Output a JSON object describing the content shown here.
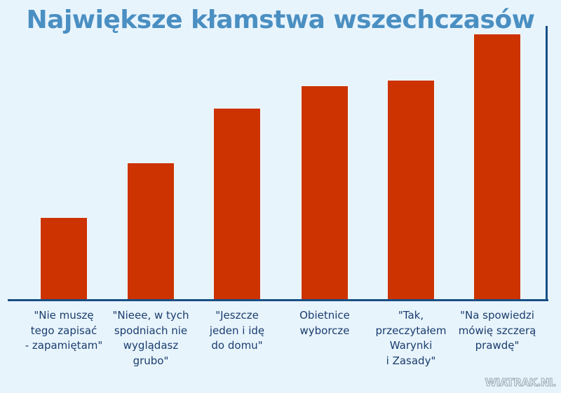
{
  "chart_data": {
    "type": "bar",
    "title": "Największe kłamstwa wszechczasów",
    "xlabel": "",
    "ylabel": "",
    "categories": [
      "\"Nie muszę tego zapisać - zapamiętam\"",
      "\"Nieee, w tych spodniach nie wyglądasz grubo\"",
      "\"Jeszcze jeden i idę do domu\"",
      "Obietnice wyborcze",
      "\"Tak, przeczytałem Warynki i Zasady\"",
      "\"Na spowiedzi mówię szczerą prawdę\""
    ],
    "values": [
      30,
      50,
      70,
      78,
      80,
      97
    ],
    "ylim": [
      0,
      100
    ],
    "grid": false,
    "legend": "none",
    "bar_color": "#cc3300",
    "axis_color": "#174f86"
  },
  "title": "Największe kłamstwa wszechczasów",
  "labels": [
    "\"Nie muszę\ntego zapisać\n- zapamiętam\"",
    "\"Nieee, w tych\nspodniach nie\nwyglądasz\ngrubo\"",
    "\"Jeszcze\njeden i idę\ndo domu\"",
    "Obietnice\nwyborcze",
    "\"Tak,\nprzeczytałem\nWarynki\ni Zasady\"",
    "\"Na spowiedzi\nmówię szczerą\nprawdę\""
  ],
  "watermark": "WIATRAK.NL",
  "colors": {
    "background": "#e8f4fc",
    "title": "#4a8fc2",
    "label": "#1a3d6e"
  }
}
